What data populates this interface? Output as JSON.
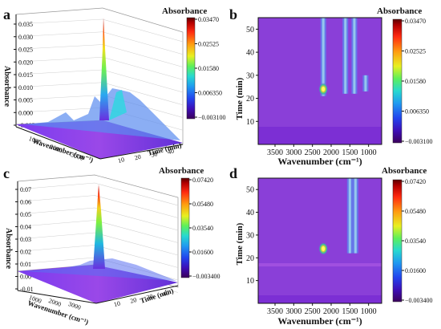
{
  "chart_data": [
    {
      "panel": "a",
      "type": "surface3d",
      "zlabel": "Absorbance",
      "xlabel": "Wavenumber (cm⁻¹)",
      "ylabel": "Time (min)",
      "zticks": [
        "-0.005",
        "0.000",
        "0.005",
        "0.010",
        "0.015",
        "0.020",
        "0.025",
        "0.030",
        "0.035"
      ],
      "xticks": [
        "1000",
        "2000",
        "3000"
      ],
      "yticks": [
        "10",
        "20",
        "30",
        "40"
      ],
      "colorbar": {
        "title": "Absorbance",
        "ticks": [
          "0.03470",
          "0.02525",
          "0.01580",
          "0.006350",
          "−0.003100"
        ]
      },
      "peak_z": 0.0347
    },
    {
      "panel": "b",
      "type": "heatmap",
      "xlabel": "Wavenumber (cm⁻¹)",
      "ylabel": "Time (min)",
      "xticks": [
        3500,
        3000,
        2500,
        2000,
        1500,
        1000
      ],
      "yticks": [
        10,
        20,
        30,
        40,
        50
      ],
      "xlim": [
        3950,
        650
      ],
      "ylim": [
        0,
        55
      ],
      "colorbar": {
        "title": "Absorbance",
        "ticks": [
          "0.03470",
          "0.02525",
          "0.01580",
          "0.006350",
          "−0.003100"
        ]
      },
      "hotspot": {
        "wavenumber": 2210,
        "time": 24,
        "value": 0.0347
      },
      "bands": [
        {
          "wavenumber": 2210,
          "from_time": 21,
          "to_time": 55
        },
        {
          "wavenumber": 1620,
          "from_time": 22,
          "to_time": 55
        },
        {
          "wavenumber": 1380,
          "from_time": 22,
          "to_time": 55
        },
        {
          "wavenumber": 1080,
          "from_time": 23,
          "to_time": 30
        }
      ]
    },
    {
      "panel": "c",
      "type": "surface3d",
      "zlabel": "Absorbance",
      "xlabel": "Wavenumber (cm⁻¹)",
      "ylabel": "Time (min)",
      "zticks": [
        "-0.01",
        "0.00",
        "0.01",
        "0.02",
        "0.03",
        "0.04",
        "0.05",
        "0.06",
        "0.07"
      ],
      "xticks": [
        "1000",
        "2000",
        "3000"
      ],
      "yticks": [
        "10",
        "20",
        "30",
        "40"
      ],
      "colorbar": {
        "title": "Absorbance",
        "ticks": [
          "0.07420",
          "0.05480",
          "0.03540",
          "0.01600",
          "−0.003400"
        ]
      },
      "peak_z": 0.0742
    },
    {
      "panel": "d",
      "type": "heatmap",
      "xlabel": "Wavenumber (cm⁻¹)",
      "ylabel": "Time (min)",
      "xticks": [
        3500,
        3000,
        2500,
        2000,
        1500,
        1000
      ],
      "yticks": [
        10,
        20,
        30,
        40,
        50
      ],
      "xlim": [
        3950,
        650
      ],
      "ylim": [
        0,
        55
      ],
      "colorbar": {
        "title": "Absorbance",
        "ticks": [
          "0.07420",
          "0.05480",
          "0.03540",
          "0.01600",
          "−0.003400"
        ]
      },
      "hotspot": {
        "wavenumber": 2210,
        "time": 24,
        "value": 0.0742
      },
      "bands": [
        {
          "wavenumber": 1500,
          "from_time": 22,
          "to_time": 55
        },
        {
          "wavenumber": 1350,
          "from_time": 22,
          "to_time": 55
        }
      ]
    }
  ],
  "colors": [
    "#3b005a",
    "#3d0fb8",
    "#2244ee",
    "#1f9bf0",
    "#27d9d0",
    "#5df05a",
    "#e8f020",
    "#ff9a10",
    "#ff2a10",
    "#b30000",
    "#5a0000"
  ],
  "background_color": "#8a3fd8"
}
